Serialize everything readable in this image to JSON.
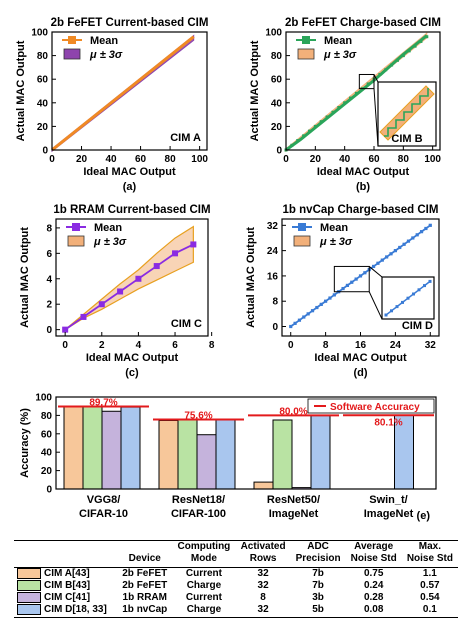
{
  "chart_data": [
    {
      "id": "a",
      "type": "line",
      "title": "2b FeFET Current-based CIM",
      "xlabel": "Ideal MAC Output",
      "ylabel": "Actual MAC Output",
      "xlim": [
        0,
        105
      ],
      "ylim": [
        0,
        100
      ],
      "xticks": [
        0,
        20,
        40,
        60,
        80,
        100
      ],
      "yticks": [
        0,
        20,
        40,
        60,
        80,
        100
      ],
      "x_tick_labels": [
        "0",
        "20",
        "40",
        "60",
        "80",
        "100"
      ],
      "y_tick_labels": [
        "0",
        "20",
        "40",
        "60",
        "80",
        "100"
      ],
      "series": [
        {
          "name": "Mean",
          "x": [
            0,
            96
          ],
          "values": [
            0,
            96
          ]
        }
      ],
      "band": {
        "name": "$\\mu \\pm 3\\sigma$",
        "x": [
          0,
          96
        ],
        "lower": [
          -1,
          93
        ],
        "upper": [
          1,
          97
        ]
      },
      "panel_label": "CIM A",
      "caption": "(a)",
      "colors": {
        "line": "#f08a24",
        "band": "#8e44ad"
      },
      "legend": "top-left"
    },
    {
      "id": "b",
      "type": "line",
      "title": "2b FeFET Charge-based CIM",
      "xlabel": "Ideal MAC Output",
      "ylabel": "Actual MAC Output",
      "xlim": [
        0,
        105
      ],
      "ylim": [
        0,
        100
      ],
      "xticks": [
        0,
        20,
        40,
        60,
        80,
        100
      ],
      "yticks": [
        0,
        20,
        40,
        60,
        80,
        100
      ],
      "x_tick_labels": [
        "0",
        "20",
        "40",
        "60",
        "80",
        "100"
      ],
      "y_tick_labels": [
        "0",
        "20",
        "40",
        "60",
        "80",
        "100"
      ],
      "series": [
        {
          "name": "Mean",
          "x": [
            0,
            10,
            20,
            30,
            40,
            50,
            60,
            70,
            80,
            90,
            96
          ],
          "values": [
            0,
            9,
            19,
            29,
            39,
            49,
            59,
            70,
            81,
            91,
            97
          ]
        }
      ],
      "band": {
        "name": "$\\mu \\pm 3\\sigma$",
        "x": [
          0,
          96
        ],
        "lower": [
          -1,
          95
        ],
        "upper": [
          1,
          99
        ]
      },
      "panel_label": "CIM B",
      "caption": "(b)",
      "colors": {
        "line": "#2aa55a",
        "band": "#f2b07a"
      },
      "legend": "top-left"
    },
    {
      "id": "c",
      "type": "line",
      "title": "1b RRAM Current-based CIM",
      "xlabel": "Ideal MAC Output",
      "ylabel": "Actual MAC Output",
      "xlim": [
        -0.5,
        7.8
      ],
      "ylim": [
        -0.5,
        8.7
      ],
      "xticks": [
        0,
        2,
        4,
        6,
        8
      ],
      "yticks": [
        0,
        2,
        4,
        6,
        8
      ],
      "x_tick_labels": [
        "0",
        "2",
        "4",
        "6",
        "8"
      ],
      "y_tick_labels": [
        "0",
        "2",
        "4",
        "6",
        "8"
      ],
      "series": [
        {
          "name": "Mean",
          "x": [
            0,
            1,
            2,
            3,
            4,
            5,
            6,
            7
          ],
          "values": [
            0,
            1.0,
            2.0,
            3.0,
            4.0,
            5.0,
            6.0,
            6.7
          ]
        }
      ],
      "band": {
        "name": "$\\mu \\pm 3\\sigma$",
        "x": [
          0,
          1,
          2,
          3,
          4,
          5,
          6,
          7
        ],
        "lower": [
          0,
          0.9,
          1.6,
          2.4,
          3.2,
          3.9,
          4.6,
          5.3
        ],
        "upper": [
          0,
          1.2,
          2.4,
          3.6,
          4.7,
          6.0,
          7.2,
          8.1
        ]
      },
      "panel_label": "CIM C",
      "caption": "(c)",
      "colors": {
        "line": "#8a2be2",
        "band": "#f2b07a",
        "band_edge": "#e8a020"
      },
      "legend": "top-left"
    },
    {
      "id": "d",
      "type": "line",
      "title": "1b nvCap Charge-based CIM",
      "xlabel": "Ideal MAC Output",
      "ylabel": "Actual MAC Output",
      "xlim": [
        -2,
        34
      ],
      "ylim": [
        -3,
        34
      ],
      "xticks": [
        0,
        8,
        16,
        24,
        32
      ],
      "yticks": [
        0,
        8,
        16,
        24,
        32
      ],
      "x_tick_labels": [
        "0",
        "8",
        "16",
        "24",
        "32"
      ],
      "y_tick_labels": [
        "0",
        "8",
        "16",
        "24",
        "32"
      ],
      "series": [
        {
          "name": "Mean",
          "x": [
            0,
            32
          ],
          "values": [
            0,
            32
          ]
        }
      ],
      "band": {
        "name": "$\\mu \\pm 3\\sigma$",
        "x": [
          0,
          32
        ],
        "lower": [
          0,
          32
        ],
        "upper": [
          0,
          32
        ]
      },
      "panel_label": "CIM D",
      "caption": "(d)",
      "colors": {
        "line": "#3a7bd5",
        "band": "#f2b07a"
      },
      "legend": "top-left"
    },
    {
      "id": "e",
      "type": "bar",
      "title": "",
      "ylabel": "Accuracy (%)",
      "ylim": [
        0,
        100
      ],
      "yticks": [
        0,
        20,
        40,
        60,
        80,
        100
      ],
      "y_tick_labels": [
        "0",
        "20",
        "40",
        "60",
        "80",
        "100"
      ],
      "categories": [
        "VGG8/\nCIFAR-10",
        "ResNet18/\nCIFAR-100",
        "ResNet50/\nImageNet",
        "Swin_t/\nImageNet"
      ],
      "series": [
        {
          "name": "CIM A[43]",
          "values": [
            89.7,
            74.5,
            7.5,
            null
          ],
          "color": "#f7c79a"
        },
        {
          "name": "CIM B[43]",
          "values": [
            89.5,
            75.5,
            75.0,
            null
          ],
          "color": "#b9e3a3"
        },
        {
          "name": "CIM C[41]",
          "values": [
            84.5,
            59.0,
            1.5,
            null
          ],
          "color": "#c5b3dc"
        },
        {
          "name": "CIM D[18, 33]",
          "values": [
            89.0,
            75.5,
            79.8,
            79.9
          ],
          "color": "#a9c6ee"
        }
      ],
      "software_accuracy": {
        "name": "Software Accuracy",
        "values": [
          89.7,
          75.6,
          80.0,
          80.1
        ],
        "labels": [
          "89.7%",
          "75.6%",
          "80.0%",
          "80.1%"
        ],
        "color": "#e31a1c"
      },
      "caption": "(e)",
      "legend": "top-right"
    }
  ],
  "table": {
    "headers": [
      [
        "",
        "Device"
      ],
      [
        "Computing",
        "Mode"
      ],
      [
        "Activated",
        "Rows"
      ],
      [
        "ADC",
        "Precision"
      ],
      [
        "Average",
        "Noise Std"
      ],
      [
        "Max.",
        "Noise Std"
      ]
    ],
    "rows": [
      {
        "name": "CIM A[43]",
        "color": "#f7c79a",
        "cells": [
          "2b FeFET",
          "Current",
          "32",
          "7b",
          "0.75",
          "1.1"
        ]
      },
      {
        "name": "CIM B[43]",
        "color": "#b9e3a3",
        "cells": [
          "2b FeFET",
          "Charge",
          "32",
          "7b",
          "0.24",
          "0.57"
        ]
      },
      {
        "name": "CIM C[41]",
        "color": "#c5b3dc",
        "cells": [
          "1b RRAM",
          "Current",
          "8",
          "3b",
          "0.28",
          "0.54"
        ]
      },
      {
        "name": "CIM D[18, 33]",
        "color": "#a9c6ee",
        "cells": [
          "1b nvCap",
          "Charge",
          "32",
          "5b",
          "0.08",
          "0.1"
        ]
      }
    ]
  }
}
